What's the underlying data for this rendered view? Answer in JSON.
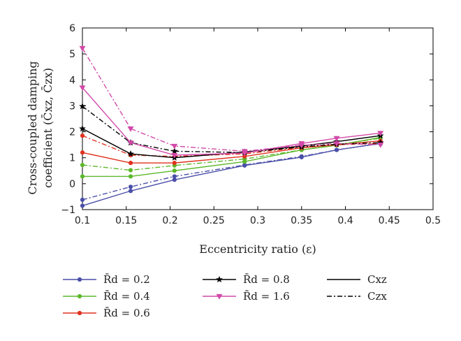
{
  "chart_data": {
    "type": "line",
    "xlabel": "Eccentricity ratio (ε)",
    "ylabel_line1": "Cross-coupled damping",
    "ylabel_line2": "coefficient (C̄xz, C̄zx)",
    "xlim": [
      0.1,
      0.5
    ],
    "ylim": [
      -1,
      6
    ],
    "xticks": [
      "0.1",
      "0.15",
      "0.2",
      "0.25",
      "0.3",
      "0.35",
      "0.4",
      "0.45",
      "0.5"
    ],
    "yticks": [
      "−1",
      "0",
      "1",
      "2",
      "3",
      "4",
      "5",
      "6"
    ],
    "x": [
      0.1,
      0.155,
      0.205,
      0.285,
      0.35,
      0.39,
      0.44
    ],
    "grid": false,
    "legend_position": "below",
    "legend_entries": [
      {
        "label": "R̄d = 0.2",
        "color": "#4a4fa8",
        "marker": "dot"
      },
      {
        "label": "R̄d = 0.4",
        "color": "#5cb82a",
        "marker": "dot"
      },
      {
        "label": "R̄d = 0.6",
        "color": "#e0311f",
        "marker": "dot"
      },
      {
        "label": "R̄d = 0.8",
        "color": "#000000",
        "marker": "star"
      },
      {
        "label": "R̄d = 1.6",
        "color": "#d248a8",
        "marker": "triangle-down"
      },
      {
        "label": "Cxz",
        "color": "#000000",
        "line": "solid"
      },
      {
        "label": "Czx",
        "color": "#000000",
        "line": "dashdot"
      }
    ],
    "series": [
      {
        "rd": "0.2",
        "coef": "Cxz",
        "color": "#4a4fa8",
        "marker": "dot",
        "dash": false,
        "values": [
          -0.85,
          -0.28,
          0.15,
          0.7,
          1.02,
          1.3,
          1.55
        ]
      },
      {
        "rd": "0.2",
        "coef": "Czx",
        "color": "#4a4fa8",
        "marker": "dot",
        "dash": true,
        "values": [
          -0.62,
          -0.12,
          0.28,
          0.72,
          1.05,
          1.3,
          1.55
        ]
      },
      {
        "rd": "0.4",
        "coef": "Cxz",
        "color": "#5cb82a",
        "marker": "dot",
        "dash": false,
        "values": [
          0.28,
          0.28,
          0.5,
          0.85,
          1.3,
          1.48,
          1.78
        ]
      },
      {
        "rd": "0.4",
        "coef": "Czx",
        "color": "#5cb82a",
        "marker": "dot",
        "dash": true,
        "values": [
          0.72,
          0.52,
          0.7,
          0.95,
          1.3,
          1.5,
          1.75
        ]
      },
      {
        "rd": "0.6",
        "coef": "Cxz",
        "color": "#e0311f",
        "marker": "dot",
        "dash": false,
        "values": [
          1.2,
          0.8,
          0.8,
          1.05,
          1.38,
          1.5,
          1.65
        ]
      },
      {
        "rd": "0.6",
        "coef": "Czx",
        "color": "#e0311f",
        "marker": "dot",
        "dash": true,
        "values": [
          1.85,
          1.1,
          1.05,
          1.15,
          1.4,
          1.5,
          1.55
        ]
      },
      {
        "rd": "0.8",
        "coef": "Cxz",
        "color": "#000000",
        "marker": "star",
        "dash": false,
        "values": [
          2.12,
          1.15,
          1.0,
          1.22,
          1.45,
          1.62,
          1.85
        ]
      },
      {
        "rd": "0.8",
        "coef": "Czx",
        "color": "#000000",
        "marker": "star",
        "dash": true,
        "values": [
          2.98,
          1.58,
          1.25,
          1.2,
          1.42,
          1.52,
          1.58
        ]
      },
      {
        "rd": "1.6",
        "coef": "Cxz",
        "color": "#d248a8",
        "marker": "triangle-down",
        "dash": false,
        "values": [
          3.7,
          1.58,
          1.1,
          1.18,
          1.55,
          1.75,
          1.95
        ]
      },
      {
        "rd": "1.6",
        "coef": "Czx",
        "color": "#d248a8",
        "marker": "triangle-down",
        "dash": true,
        "values": [
          5.22,
          2.12,
          1.45,
          1.25,
          1.48,
          1.55,
          1.5
        ]
      }
    ]
  }
}
